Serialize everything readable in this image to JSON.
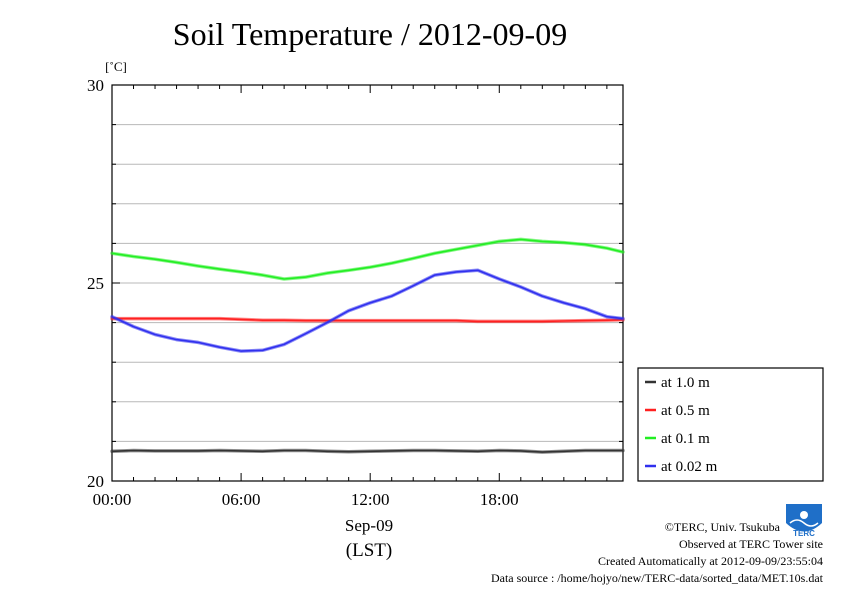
{
  "chart_data": {
    "type": "line",
    "title": "Soil Temperature / 2012-09-09",
    "ylabel": "[˚C]",
    "xlabel_date": "Sep-09",
    "xlabel_zone": "(LST)",
    "x_hours": [
      0,
      1,
      2,
      3,
      4,
      5,
      6,
      7,
      8,
      9,
      10,
      11,
      12,
      13,
      14,
      15,
      16,
      17,
      18,
      19,
      20,
      21,
      22,
      23,
      23.75
    ],
    "xlim": [
      0,
      23.75
    ],
    "ylim": [
      20,
      30
    ],
    "xticks": [
      0,
      6,
      12,
      18
    ],
    "xtick_labels": [
      "00:00",
      "06:00",
      "12:00",
      "18:00"
    ],
    "yticks": [
      20,
      25,
      30
    ],
    "ytick_labels": [
      "20",
      "25",
      "30"
    ],
    "grid": true,
    "legend_position": "right",
    "series": [
      {
        "name": "at 1.0 m",
        "color": "#333333",
        "values": [
          20.75,
          20.77,
          20.76,
          20.76,
          20.76,
          20.77,
          20.76,
          20.75,
          20.77,
          20.77,
          20.75,
          20.74,
          20.75,
          20.76,
          20.77,
          20.77,
          20.76,
          20.75,
          20.77,
          20.76,
          20.73,
          20.75,
          20.77,
          20.77,
          20.77
        ]
      },
      {
        "name": "at 0.5 m",
        "color": "#ff2020",
        "values": [
          24.1,
          24.1,
          24.1,
          24.1,
          24.1,
          24.1,
          24.08,
          24.06,
          24.06,
          24.05,
          24.05,
          24.05,
          24.05,
          24.05,
          24.05,
          24.05,
          24.05,
          24.03,
          24.03,
          24.03,
          24.03,
          24.04,
          24.05,
          24.06,
          24.07
        ]
      },
      {
        "name": "at 0.1 m",
        "color": "#22ee22",
        "values": [
          25.75,
          25.67,
          25.6,
          25.52,
          25.43,
          25.35,
          25.28,
          25.2,
          25.1,
          25.15,
          25.25,
          25.32,
          25.4,
          25.5,
          25.62,
          25.75,
          25.85,
          25.95,
          26.05,
          26.1,
          26.05,
          26.02,
          25.97,
          25.88,
          25.78
        ]
      },
      {
        "name": "at 0.02 m",
        "color": "#3030ee",
        "values": [
          24.15,
          23.9,
          23.7,
          23.57,
          23.5,
          23.38,
          23.28,
          23.3,
          23.45,
          23.72,
          24.0,
          24.3,
          24.5,
          24.67,
          24.93,
          25.2,
          25.28,
          25.32,
          25.1,
          24.9,
          24.67,
          24.5,
          24.35,
          24.15,
          24.1
        ]
      }
    ]
  },
  "footer": {
    "credit": "©TERC, Univ. Tsukuba",
    "observed": "Observed at TERC Tower site",
    "created": "Created Automatically at 2012-09-09/23:55:04",
    "source": "Data source : /home/hojyo/new/TERC-data/sorted_data/MET.10s.dat"
  },
  "logo": {
    "text": "TERC",
    "color": "#1f6fc8"
  }
}
